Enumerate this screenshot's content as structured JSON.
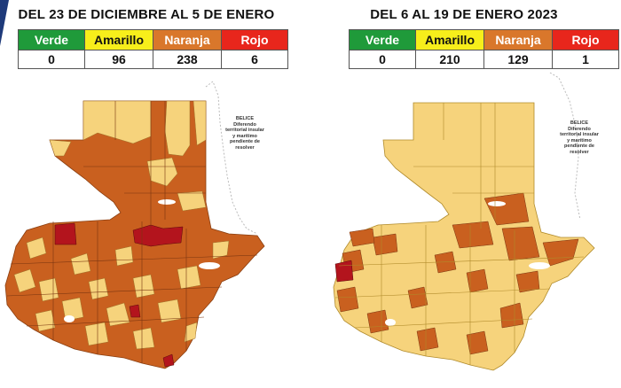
{
  "colors": {
    "verde": "#1f9a3a",
    "amarillo": "#f7ee1b",
    "naranja": "#d9772b",
    "rojo": "#e8261c",
    "map_yellow": "#f6d37c",
    "map_orange": "#c9601f",
    "map_red": "#b3141d",
    "accent_blue": "#1e3a7a"
  },
  "left": {
    "title": "DEL 23 DE DICIEMBRE AL 5 DE ENERO",
    "legend": {
      "labels": [
        "Verde",
        "Amarillo",
        "Naranja",
        "Rojo"
      ],
      "values": [
        "0",
        "96",
        "238",
        "6"
      ]
    },
    "belize_note": "BELICE Diferendo territorial insular y marítimo pendiente de resolver"
  },
  "right": {
    "title": "DEL 6 AL 19 DE ENERO 2023",
    "legend": {
      "labels": [
        "Verde",
        "Amarillo",
        "Naranja",
        "Rojo"
      ],
      "values": [
        "0",
        "210",
        "129",
        "1"
      ]
    },
    "belize_note": "BELICE Diferendo territorial insular y marítimo pendiente de resolver"
  }
}
